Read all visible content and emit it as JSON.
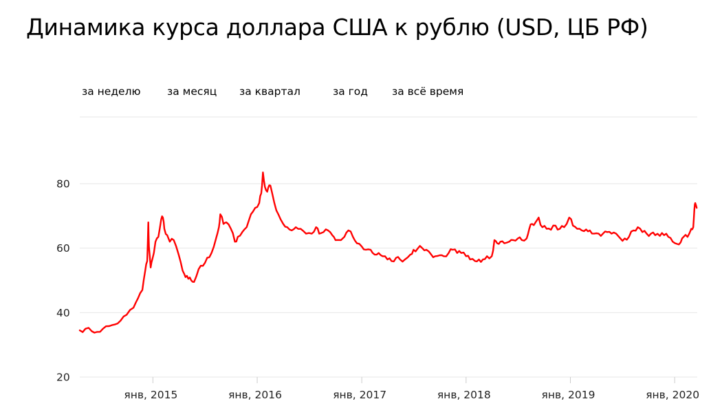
{
  "header": {
    "title": "Динамика курса доллара США к рублю (USD, ЦБ РФ)"
  },
  "periods": [
    {
      "id": "week",
      "label": "за неделю"
    },
    {
      "id": "month",
      "label": "за месяц"
    },
    {
      "id": "quarter",
      "label": "за квартал"
    },
    {
      "id": "year",
      "label": "за год"
    },
    {
      "id": "all",
      "label": "за всё время"
    }
  ],
  "colors": {
    "line": "#ff0000",
    "grid": "#e6e6e6"
  },
  "chart_data": {
    "type": "line",
    "title": "Динамика курса доллара США к рублю (USD, ЦБ РФ)",
    "xlabel": "",
    "ylabel": "",
    "ylim": [
      20,
      83
    ],
    "xlim": [
      "2014-04-20",
      "2020-03-20"
    ],
    "yticks": [
      20,
      40,
      60,
      80
    ],
    "xticks": [
      {
        "date": "2015-01-01",
        "label": "янв, 2015"
      },
      {
        "date": "2016-01-01",
        "label": "янв, 2016"
      },
      {
        "date": "2017-01-01",
        "label": "янв, 2017"
      },
      {
        "date": "2018-01-01",
        "label": "янв, 2018"
      },
      {
        "date": "2019-01-01",
        "label": "янв, 2019"
      },
      {
        "date": "2020-01-01",
        "label": "янв, 2020"
      }
    ],
    "grid": true,
    "series": [
      {
        "color": "#ff0000",
        "points": [
          [
            "2014-04-20",
            34.5
          ],
          [
            "2014-05-10",
            35.0
          ],
          [
            "2014-06-01",
            34.2
          ],
          [
            "2014-06-20",
            34.0
          ],
          [
            "2014-07-10",
            35.0
          ],
          [
            "2014-08-01",
            35.8
          ],
          [
            "2014-08-20",
            36.3
          ],
          [
            "2014-09-10",
            37.5
          ],
          [
            "2014-10-01",
            39.3
          ],
          [
            "2014-10-25",
            41.5
          ],
          [
            "2014-11-10",
            44.5
          ],
          [
            "2014-11-25",
            47.0
          ],
          [
            "2014-12-05",
            53.0
          ],
          [
            "2014-12-12",
            56.0
          ],
          [
            "2014-12-16",
            68.0
          ],
          [
            "2014-12-18",
            60.5
          ],
          [
            "2014-12-24",
            54.0
          ],
          [
            "2014-12-30",
            56.5
          ],
          [
            "2015-01-10",
            62.0
          ],
          [
            "2015-01-20",
            63.5
          ],
          [
            "2015-01-30",
            68.9
          ],
          [
            "2015-02-05",
            69.5
          ],
          [
            "2015-02-10",
            66.0
          ],
          [
            "2015-02-20",
            64.0
          ],
          [
            "2015-03-01",
            62.0
          ],
          [
            "2015-03-15",
            62.5
          ],
          [
            "2015-04-01",
            58.0
          ],
          [
            "2015-04-15",
            53.0
          ],
          [
            "2015-04-25",
            51.0
          ],
          [
            "2015-05-05",
            50.5
          ],
          [
            "2015-05-15",
            50.0
          ],
          [
            "2015-05-25",
            49.5
          ],
          [
            "2015-06-10",
            53.5
          ],
          [
            "2015-06-25",
            54.5
          ],
          [
            "2015-07-10",
            57.0
          ],
          [
            "2015-07-25",
            58.5
          ],
          [
            "2015-08-10",
            63.0
          ],
          [
            "2015-08-20",
            66.5
          ],
          [
            "2015-08-25",
            70.5
          ],
          [
            "2015-09-05",
            67.5
          ],
          [
            "2015-09-15",
            68.0
          ],
          [
            "2015-10-01",
            66.0
          ],
          [
            "2015-10-15",
            62.0
          ],
          [
            "2015-10-25",
            63.5
          ],
          [
            "2015-11-10",
            65.0
          ],
          [
            "2015-11-25",
            66.5
          ],
          [
            "2015-12-10",
            70.5
          ],
          [
            "2015-12-25",
            72.5
          ],
          [
            "2016-01-08",
            74.0
          ],
          [
            "2016-01-15",
            77.0
          ],
          [
            "2016-01-21",
            83.5
          ],
          [
            "2016-01-28",
            79.0
          ],
          [
            "2016-02-05",
            77.5
          ],
          [
            "2016-02-12",
            79.5
          ],
          [
            "2016-02-20",
            78.0
          ],
          [
            "2016-03-01",
            74.0
          ],
          [
            "2016-03-15",
            70.5
          ],
          [
            "2016-04-01",
            67.5
          ],
          [
            "2016-04-15",
            66.5
          ],
          [
            "2016-05-01",
            65.5
          ],
          [
            "2016-05-15",
            66.5
          ],
          [
            "2016-06-01",
            66.0
          ],
          [
            "2016-06-20",
            64.5
          ],
          [
            "2016-07-10",
            64.5
          ],
          [
            "2016-07-25",
            66.5
          ],
          [
            "2016-08-05",
            64.5
          ],
          [
            "2016-08-20",
            65.0
          ],
          [
            "2016-09-05",
            65.5
          ],
          [
            "2016-09-20",
            64.0
          ],
          [
            "2016-10-01",
            62.5
          ],
          [
            "2016-10-20",
            62.5
          ],
          [
            "2016-11-01",
            63.5
          ],
          [
            "2016-11-15",
            65.5
          ],
          [
            "2016-12-01",
            63.5
          ],
          [
            "2016-12-15",
            61.5
          ],
          [
            "2017-01-01",
            60.5
          ],
          [
            "2017-01-15",
            59.5
          ],
          [
            "2017-02-01",
            59.5
          ],
          [
            "2017-02-15",
            58.0
          ],
          [
            "2017-03-01",
            58.5
          ],
          [
            "2017-03-15",
            57.5
          ],
          [
            "2017-04-01",
            56.5
          ],
          [
            "2017-04-15",
            56.0
          ],
          [
            "2017-05-01",
            57.0
          ],
          [
            "2017-05-15",
            56.5
          ],
          [
            "2017-06-01",
            56.5
          ],
          [
            "2017-06-20",
            58.0
          ],
          [
            "2017-07-01",
            59.5
          ],
          [
            "2017-07-15",
            59.8
          ],
          [
            "2017-08-01",
            60.0
          ],
          [
            "2017-08-15",
            59.5
          ],
          [
            "2017-09-01",
            58.0
          ],
          [
            "2017-09-15",
            57.5
          ],
          [
            "2017-10-01",
            57.8
          ],
          [
            "2017-10-15",
            57.5
          ],
          [
            "2017-11-01",
            58.5
          ],
          [
            "2017-11-15",
            59.5
          ],
          [
            "2017-12-01",
            58.5
          ],
          [
            "2017-12-15",
            58.5
          ],
          [
            "2018-01-01",
            57.5
          ],
          [
            "2018-01-15",
            56.5
          ],
          [
            "2018-02-01",
            56.0
          ],
          [
            "2018-02-15",
            56.5
          ],
          [
            "2018-03-01",
            56.5
          ],
          [
            "2018-03-15",
            57.5
          ],
          [
            "2018-04-01",
            57.5
          ],
          [
            "2018-04-10",
            62.5
          ],
          [
            "2018-04-20",
            61.5
          ],
          [
            "2018-05-01",
            62.0
          ],
          [
            "2018-05-15",
            61.5
          ],
          [
            "2018-06-01",
            62.0
          ],
          [
            "2018-06-15",
            62.5
          ],
          [
            "2018-07-01",
            63.0
          ],
          [
            "2018-07-15",
            62.5
          ],
          [
            "2018-08-01",
            63.0
          ],
          [
            "2018-08-10",
            66.0
          ],
          [
            "2018-08-20",
            67.5
          ],
          [
            "2018-09-01",
            68.0
          ],
          [
            "2018-09-12",
            69.5
          ],
          [
            "2018-09-25",
            66.5
          ],
          [
            "2018-10-10",
            66.0
          ],
          [
            "2018-10-25",
            65.7
          ],
          [
            "2018-11-10",
            67.0
          ],
          [
            "2018-11-25",
            66.0
          ],
          [
            "2018-12-10",
            66.5
          ],
          [
            "2018-12-28",
            69.5
          ],
          [
            "2019-01-10",
            67.0
          ],
          [
            "2019-01-25",
            66.0
          ],
          [
            "2019-02-10",
            65.5
          ],
          [
            "2019-02-25",
            65.8
          ],
          [
            "2019-03-10",
            65.5
          ],
          [
            "2019-03-25",
            64.5
          ],
          [
            "2019-04-10",
            64.5
          ],
          [
            "2019-04-25",
            64.5
          ],
          [
            "2019-05-10",
            65.0
          ],
          [
            "2019-05-25",
            64.5
          ],
          [
            "2019-06-10",
            64.5
          ],
          [
            "2019-06-25",
            63.0
          ],
          [
            "2019-07-10",
            63.0
          ],
          [
            "2019-07-25",
            63.5
          ],
          [
            "2019-08-10",
            65.5
          ],
          [
            "2019-08-25",
            66.5
          ],
          [
            "2019-09-10",
            65.0
          ],
          [
            "2019-09-25",
            64.5
          ],
          [
            "2019-10-10",
            64.5
          ],
          [
            "2019-10-25",
            64.0
          ],
          [
            "2019-11-10",
            63.8
          ],
          [
            "2019-11-25",
            64.0
          ],
          [
            "2019-12-10",
            63.5
          ],
          [
            "2019-12-25",
            62.0
          ],
          [
            "2020-01-10",
            61.3
          ],
          [
            "2020-01-22",
            61.8
          ],
          [
            "2020-02-01",
            63.5
          ],
          [
            "2020-02-15",
            63.5
          ],
          [
            "2020-02-28",
            66.0
          ],
          [
            "2020-03-06",
            66.5
          ],
          [
            "2020-03-10",
            72.0
          ],
          [
            "2020-03-13",
            74.0
          ],
          [
            "2020-03-18",
            72.5
          ]
        ]
      }
    ]
  }
}
